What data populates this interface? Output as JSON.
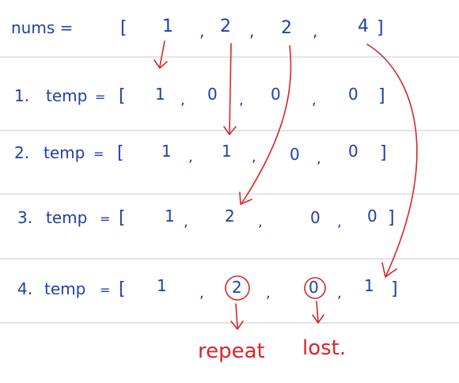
{
  "nums": {
    "label": "nums =",
    "open": "[",
    "values": [
      "1",
      "2",
      "2",
      "4"
    ],
    "sep": ",",
    "close": "]"
  },
  "rows": [
    {
      "prefix": "1.",
      "label": "temp",
      "eq": "=",
      "open": "[",
      "values": [
        "1",
        "0",
        "0",
        "0"
      ],
      "sep": ",",
      "close": "]"
    },
    {
      "prefix": "2.",
      "label": "temp",
      "eq": "=",
      "open": "[",
      "values": [
        "1",
        "1",
        "0",
        "0"
      ],
      "sep": ",",
      "close": "]"
    },
    {
      "prefix": "3.",
      "label": "temp",
      "eq": "=",
      "open": "[",
      "values": [
        "1",
        "2",
        "0",
        "0"
      ],
      "sep": ",",
      "close": "]"
    },
    {
      "prefix": "4.",
      "label": "temp",
      "eq": "=",
      "open": "[",
      "values": [
        "1",
        "2",
        "0",
        "1"
      ],
      "sep": ",",
      "close": "]"
    }
  ],
  "annotations": {
    "repeat": "repeat",
    "lost": "lost."
  },
  "colors": {
    "ink": "#1f3fa8",
    "annotation": "#d7262b",
    "rule_lines": "#c9c9cf"
  }
}
